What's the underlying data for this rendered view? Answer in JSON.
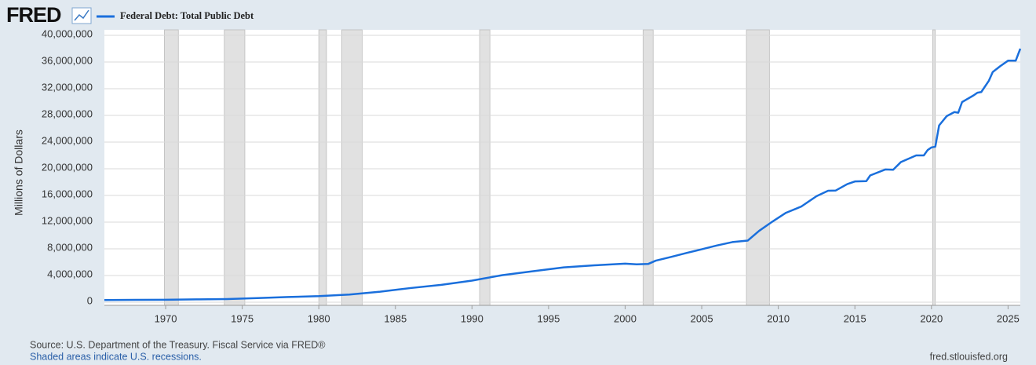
{
  "chart_data": {
    "type": "line",
    "logo": "FRED",
    "ylabel": "Millions of Dollars",
    "source": "Source: U.S. Department of the Treasury. Fiscal Service via FRED®",
    "note": "Shaded areas indicate U.S. recessions.",
    "site": "fred.stlouisfed.org",
    "xlim": [
      1966,
      2025.8
    ],
    "ylim": [
      0,
      40000000
    ],
    "xticks": [
      1970,
      1975,
      1980,
      1985,
      1990,
      1995,
      2000,
      2005,
      2010,
      2015,
      2020,
      2025
    ],
    "yticks": [
      0,
      {
        "value": 4000000,
        "label": "4,000,000"
      },
      {
        "value": 8000000,
        "label": "8,000,000"
      },
      {
        "value": 12000000,
        "label": "12,000,000"
      },
      {
        "value": 16000000,
        "label": "16,000,000"
      },
      {
        "value": 20000000,
        "label": "20,000,000"
      },
      {
        "value": 24000000,
        "label": "24,000,000"
      },
      {
        "value": 28000000,
        "label": "28,000,000"
      },
      {
        "value": 32000000,
        "label": "32,000,000"
      },
      {
        "value": 36000000,
        "label": "36,000,000"
      },
      {
        "value": 40000000,
        "label": "40,000,000"
      }
    ],
    "grid": true,
    "recessions": [
      [
        1969.92,
        1970.83
      ],
      [
        1973.83,
        1975.17
      ],
      [
        1980.0,
        1980.5
      ],
      [
        1981.5,
        1982.83
      ],
      [
        1990.5,
        1991.17
      ],
      [
        2001.17,
        2001.83
      ],
      [
        2007.92,
        2009.42
      ],
      [
        2020.08,
        2020.25
      ]
    ],
    "x": [
      1966,
      1968,
      1970,
      1972,
      1974,
      1976,
      1978,
      1980,
      1982,
      1984,
      1986,
      1988,
      1990,
      1992,
      1994,
      1996,
      1998,
      2000,
      2000.75,
      2001.5,
      2002,
      2003,
      2004,
      2005,
      2006,
      2007,
      2008,
      2008.75,
      2009.5,
      2010.5,
      2011.5,
      2012.5,
      2013.25,
      2013.75,
      2014.5,
      2015,
      2015.75,
      2016,
      2017,
      2017.5,
      2018,
      2019,
      2019.5,
      2019.75,
      2020,
      2020.25,
      2020.5,
      2021,
      2021.5,
      2021.75,
      2022,
      2022.75,
      2023,
      2023.25,
      2023.75,
      2024,
      2024.5,
      2025,
      2025.5,
      2025.8
    ],
    "series": [
      {
        "name": "Federal Debt: Total Public Debt",
        "color": "#1a6fdc",
        "values": [
          320000,
          348000,
          371000,
          427000,
          475000,
          620000,
          780000,
          907000,
          1142000,
          1572000,
          2125000,
          2602000,
          3233000,
          4064000,
          4643000,
          5224000,
          5526000,
          5776000,
          5674000,
          5730000,
          6228000,
          6783000,
          7379000,
          7933000,
          8507000,
          9008000,
          9230000,
          10700000,
          11900000,
          13400000,
          14340000,
          15900000,
          16700000,
          16740000,
          17700000,
          18100000,
          18150000,
          19000000,
          19900000,
          19850000,
          21000000,
          22000000,
          22000000,
          22800000,
          23200000,
          23300000,
          26500000,
          27900000,
          28500000,
          28400000,
          30000000,
          31000000,
          31400000,
          31500000,
          33200000,
          34500000,
          35400000,
          36200000,
          36200000,
          38000000
        ]
      }
    ]
  }
}
